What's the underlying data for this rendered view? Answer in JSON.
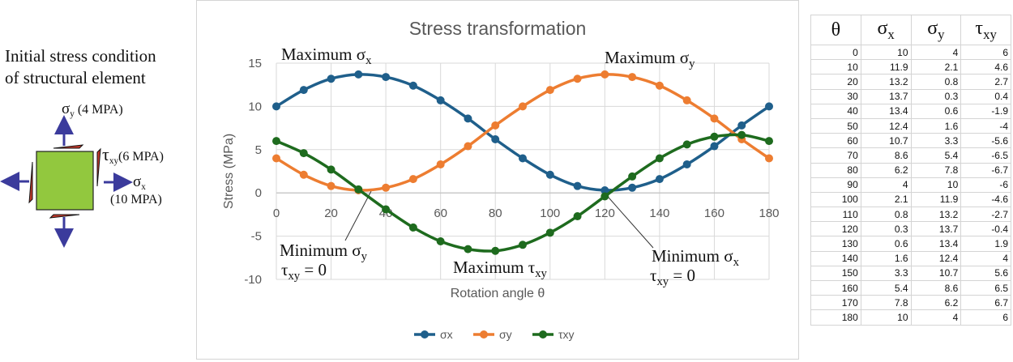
{
  "left_panel": {
    "title_line1": "Initial stress condition",
    "title_line2": "of structural element",
    "sigma_y_label": {
      "symbol": "σ",
      "sub": "y",
      "value": " (4 MPA)"
    },
    "tau_xy_label": {
      "symbol": "τ",
      "sub": "xy",
      "value": "(6 MPA)"
    },
    "sigma_x_label": {
      "symbol": "σ",
      "sub": "x",
      "value": "(10 MPA)"
    },
    "colors": {
      "element_fill": "#92c83e",
      "arrow": "#3b3b9c",
      "shear": "#c0392b"
    }
  },
  "annotations": {
    "max_sx": {
      "text": "Maximum σ",
      "sub": "x"
    },
    "max_sy": {
      "text": "Maximum σ",
      "sub": "y"
    },
    "min_sy": {
      "text": "Minimum σ",
      "sub": "y",
      "line2": "τ",
      "line2_sub": "xy",
      "line2_rest": " = 0"
    },
    "min_sx": {
      "text": "Minimum σ",
      "sub": "x",
      "line2": "τ",
      "line2_sub": "xy",
      "line2_rest": " = 0"
    },
    "max_txy": {
      "text": "Maximum τ",
      "sub": "xy"
    }
  },
  "chart_data": {
    "type": "line",
    "title": "Stress transformation",
    "xlabel": "Rotation angle θ",
    "ylabel": "Stress (MPa)",
    "xlim": [
      0,
      180
    ],
    "ylim": [
      -10,
      15
    ],
    "xticks": [
      0,
      20,
      40,
      60,
      80,
      100,
      120,
      140,
      160,
      180
    ],
    "yticks": [
      -10,
      -5,
      0,
      5,
      10,
      15
    ],
    "grid": true,
    "legend_position": "bottom",
    "x": [
      0,
      10,
      20,
      30,
      40,
      50,
      60,
      70,
      80,
      90,
      100,
      110,
      120,
      130,
      140,
      150,
      160,
      170,
      180
    ],
    "series": [
      {
        "name": "σx",
        "color": "#1f5f8b",
        "values": [
          10,
          11.9,
          13.2,
          13.7,
          13.4,
          12.4,
          10.7,
          8.6,
          6.2,
          4,
          2.1,
          0.8,
          0.3,
          0.6,
          1.6,
          3.3,
          5.4,
          7.8,
          10
        ]
      },
      {
        "name": "σy",
        "color": "#ed7d31",
        "values": [
          4,
          2.1,
          0.8,
          0.3,
          0.6,
          1.6,
          3.3,
          5.4,
          7.8,
          10,
          11.9,
          13.2,
          13.7,
          13.4,
          12.4,
          10.7,
          8.6,
          6.2,
          4
        ]
      },
      {
        "name": "τxy",
        "color": "#1e6b1e",
        "values": [
          6,
          4.6,
          2.7,
          0.4,
          -1.9,
          -4,
          -5.6,
          -6.5,
          -6.7,
          -6,
          -4.6,
          -2.7,
          -0.4,
          1.9,
          4,
          5.6,
          6.5,
          6.7,
          6
        ]
      }
    ]
  },
  "table": {
    "headers": [
      {
        "sym": "θ",
        "sub": ""
      },
      {
        "sym": "σ",
        "sub": "x"
      },
      {
        "sym": "σ",
        "sub": "y"
      },
      {
        "sym": "τ",
        "sub": "xy"
      }
    ],
    "rows": [
      [
        "0",
        "10",
        "4",
        "6"
      ],
      [
        "10",
        "11.9",
        "2.1",
        "4.6"
      ],
      [
        "20",
        "13.2",
        "0.8",
        "2.7"
      ],
      [
        "30",
        "13.7",
        "0.3",
        "0.4"
      ],
      [
        "40",
        "13.4",
        "0.6",
        "-1.9"
      ],
      [
        "50",
        "12.4",
        "1.6",
        "-4"
      ],
      [
        "60",
        "10.7",
        "3.3",
        "-5.6"
      ],
      [
        "70",
        "8.6",
        "5.4",
        "-6.5"
      ],
      [
        "80",
        "6.2",
        "7.8",
        "-6.7"
      ],
      [
        "90",
        "4",
        "10",
        "-6"
      ],
      [
        "100",
        "2.1",
        "11.9",
        "-4.6"
      ],
      [
        "110",
        "0.8",
        "13.2",
        "-2.7"
      ],
      [
        "120",
        "0.3",
        "13.7",
        "-0.4"
      ],
      [
        "130",
        "0.6",
        "13.4",
        "1.9"
      ],
      [
        "140",
        "1.6",
        "12.4",
        "4"
      ],
      [
        "150",
        "3.3",
        "10.7",
        "5.6"
      ],
      [
        "160",
        "5.4",
        "8.6",
        "6.5"
      ],
      [
        "170",
        "7.8",
        "6.2",
        "6.7"
      ],
      [
        "180",
        "10",
        "4",
        "6"
      ]
    ]
  }
}
